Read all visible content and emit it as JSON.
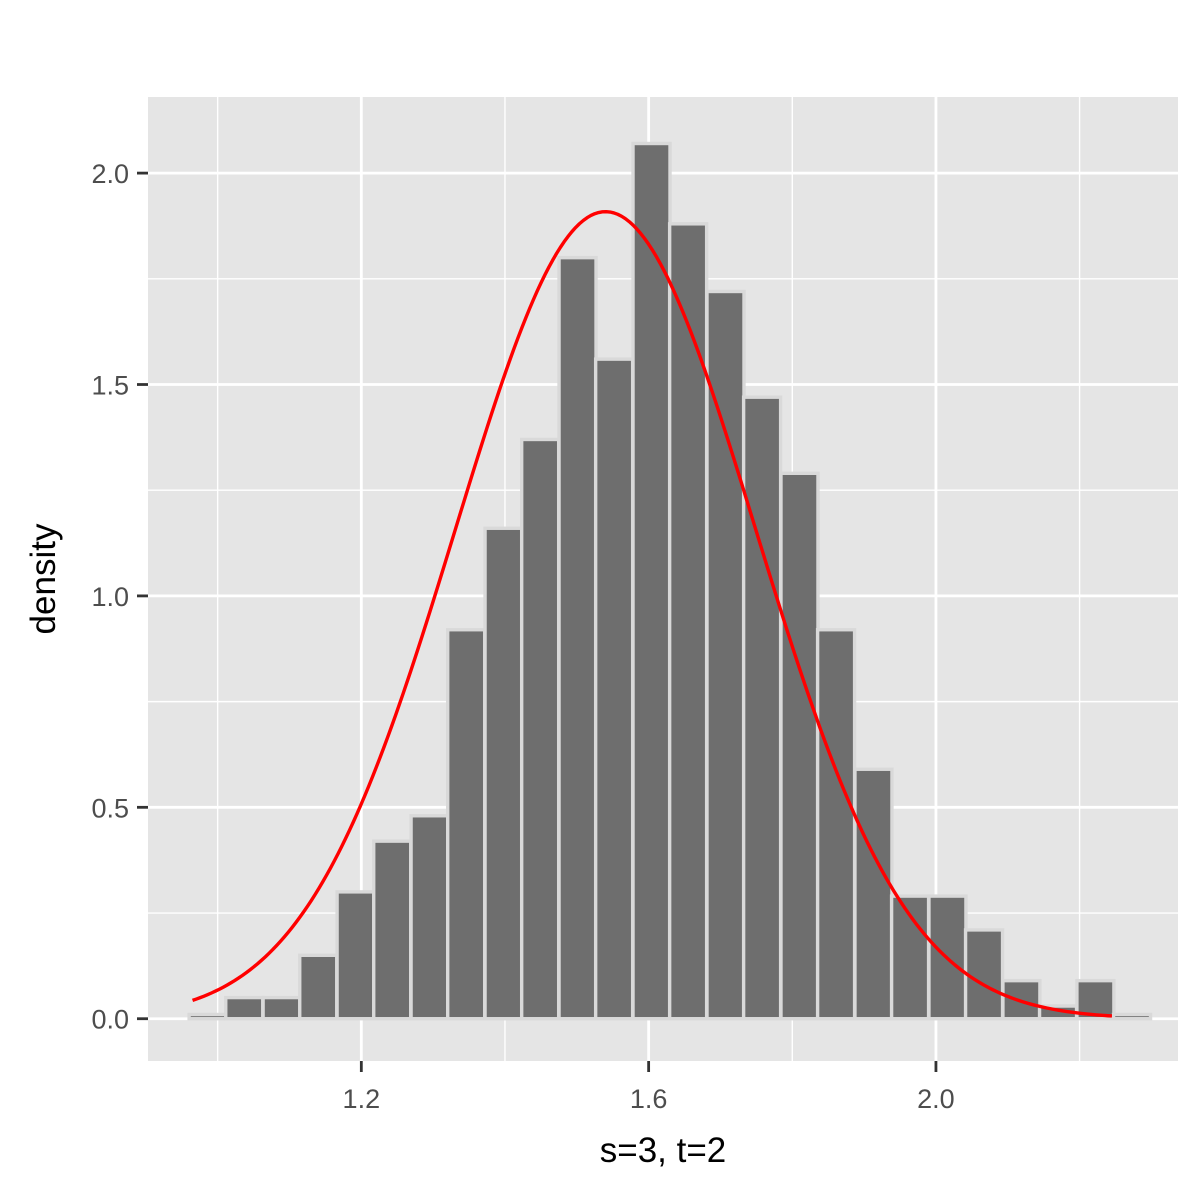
{
  "chart_data": {
    "type": "bar",
    "subtype": "histogram",
    "xlabel": "s=3, t=2",
    "ylabel": "density",
    "xlim": [
      0.903,
      2.337
    ],
    "ylim": [
      -0.1,
      2.18
    ],
    "x_ticks": [
      1.2,
      1.6,
      2.0
    ],
    "x_tick_labels": [
      "1.2",
      "1.6",
      "2.0"
    ],
    "y_ticks": [
      0.0,
      0.5,
      1.0,
      1.5,
      2.0
    ],
    "y_tick_labels": [
      "0.0",
      "0.5",
      "1.0",
      "1.5",
      "2.0"
    ],
    "grid": true,
    "bin_width": 0.0515,
    "bins": [
      {
        "x": 0.986,
        "density": 0.01
      },
      {
        "x": 1.037,
        "density": 0.05
      },
      {
        "x": 1.089,
        "density": 0.05
      },
      {
        "x": 1.14,
        "density": 0.15
      },
      {
        "x": 1.192,
        "density": 0.3
      },
      {
        "x": 1.243,
        "density": 0.42
      },
      {
        "x": 1.295,
        "density": 0.48
      },
      {
        "x": 1.346,
        "density": 0.92
      },
      {
        "x": 1.398,
        "density": 1.16
      },
      {
        "x": 1.449,
        "density": 1.37
      },
      {
        "x": 1.501,
        "density": 1.8
      },
      {
        "x": 1.552,
        "density": 1.56
      },
      {
        "x": 1.604,
        "density": 2.07
      },
      {
        "x": 1.655,
        "density": 1.88
      },
      {
        "x": 1.707,
        "density": 1.72
      },
      {
        "x": 1.758,
        "density": 1.47
      },
      {
        "x": 1.81,
        "density": 1.29
      },
      {
        "x": 1.861,
        "density": 0.92
      },
      {
        "x": 1.913,
        "density": 0.59
      },
      {
        "x": 1.964,
        "density": 0.29
      },
      {
        "x": 2.016,
        "density": 0.29
      },
      {
        "x": 2.067,
        "density": 0.21
      },
      {
        "x": 2.119,
        "density": 0.09
      },
      {
        "x": 2.17,
        "density": 0.03
      },
      {
        "x": 2.222,
        "density": 0.09
      },
      {
        "x": 2.273,
        "density": 0.01
      }
    ],
    "curve": {
      "type": "normal-density",
      "mean": 1.54,
      "sd": 0.209,
      "x_range": [
        0.965,
        2.245
      ]
    },
    "colors": {
      "panel": "#e5e5e5",
      "grid": "#ffffff",
      "bar_fill": "#6e6e6e",
      "bar_outline": "#d9d9d9",
      "curve": "#ff0000",
      "tick": "#333333"
    }
  }
}
